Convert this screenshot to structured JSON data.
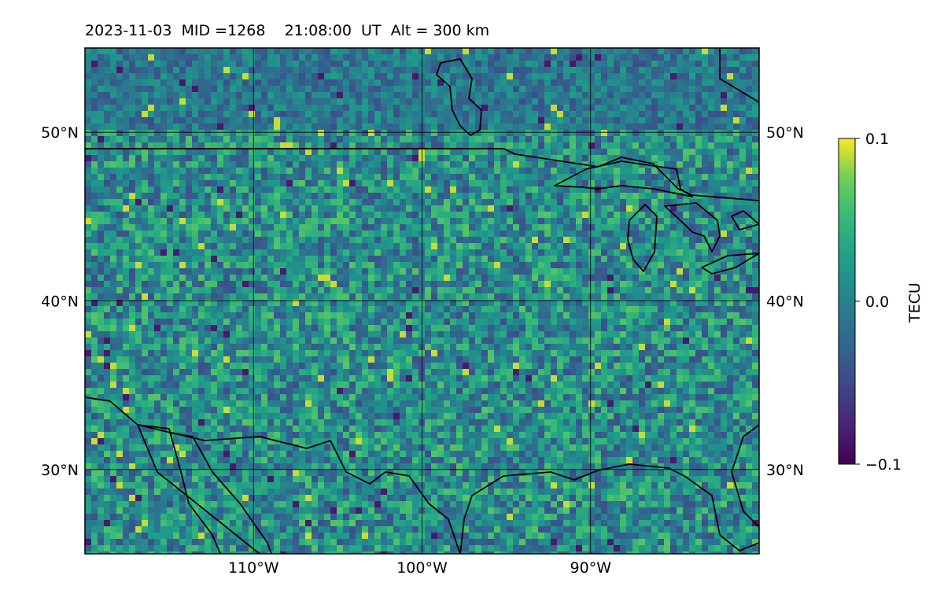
{
  "title": "2023-11-03  MID =1268    21:08:00  UT  Alt = 300 km",
  "map": {
    "lon_range": [
      -120,
      -80
    ],
    "lat_range": [
      25,
      55
    ],
    "grid": true,
    "lat_ticks": [
      {
        "value": 30,
        "label": "30°N"
      },
      {
        "value": 40,
        "label": "40°N"
      },
      {
        "value": 50,
        "label": "50°N"
      }
    ],
    "lon_ticks": [
      {
        "value": -110,
        "label": "110°W"
      },
      {
        "value": -100,
        "label": "100°W"
      },
      {
        "value": -90,
        "label": "90°W"
      }
    ],
    "coastlines": true,
    "colormap": "viridis"
  },
  "colorbar": {
    "label": "TECU",
    "min": -0.1,
    "max": 0.1,
    "ticks": [
      {
        "value": 0.1,
        "label": "0.1"
      },
      {
        "value": 0.0,
        "label": "0.0"
      },
      {
        "value": -0.1,
        "label": "−0.1"
      }
    ]
  }
}
